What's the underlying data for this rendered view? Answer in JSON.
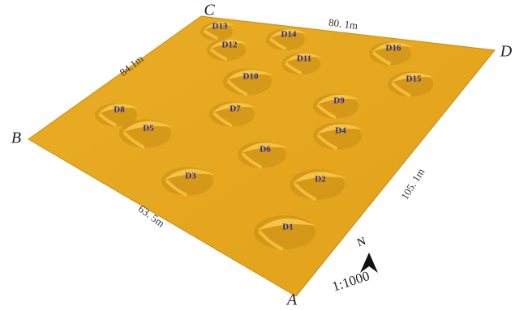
{
  "corners": {
    "A": "A",
    "B": "B",
    "C": "C",
    "D": "D"
  },
  "edges": {
    "top": "80. 1m",
    "left_top": "84.1m",
    "left_bottom": "63. 5m",
    "right": "105. 1m"
  },
  "dunes": [
    "D1",
    "D2",
    "D3",
    "D4",
    "D5",
    "D6",
    "D7",
    "D8",
    "D9",
    "D10",
    "D11",
    "D12",
    "D13",
    "D14",
    "D15",
    "D16"
  ],
  "compass": {
    "north": "N",
    "scale": "1:1000"
  }
}
